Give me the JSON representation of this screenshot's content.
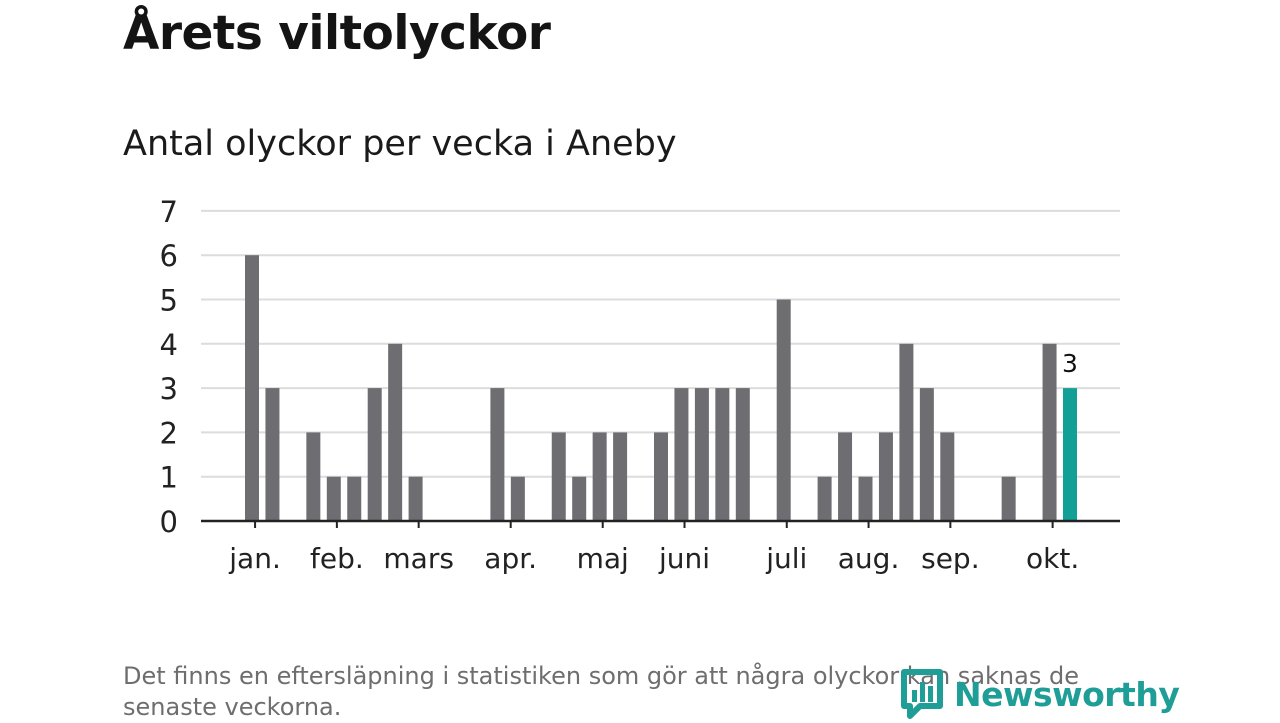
{
  "title": "Årets viltolyckor",
  "subtitle": "Antal olyckor per vecka i Aneby",
  "footnote": "Det finns en eftersläpning i statistiken som gör att några olyckor kan saknas de senaste veckorna.",
  "brand": {
    "name": "Newsworthy",
    "color": "#1f9e97",
    "icon": "bar-chart-speech-bubble-icon"
  },
  "colors": {
    "bar": "#6e6d72",
    "highlight": "#12a096",
    "grid": "#dcdcdc",
    "axis": "#222222"
  },
  "chart_data": {
    "type": "bar",
    "ylim": [
      0,
      7
    ],
    "yticks": [
      0,
      1,
      2,
      3,
      4,
      5,
      6,
      7
    ],
    "grid": true,
    "values": [
      6,
      3,
      0,
      2,
      1,
      1,
      3,
      4,
      1,
      0,
      0,
      0,
      3,
      1,
      0,
      2,
      1,
      2,
      2,
      0,
      2,
      3,
      3,
      3,
      3,
      0,
      5,
      0,
      1,
      2,
      1,
      2,
      4,
      3,
      2,
      0,
      0,
      1,
      0,
      4,
      3
    ],
    "highlight_index": 40,
    "highlight_label": "3",
    "months": [
      {
        "label": "jan.",
        "week": 0.15
      },
      {
        "label": "feb.",
        "week": 4.15
      },
      {
        "label": "mars",
        "week": 8.15
      },
      {
        "label": "apr.",
        "week": 12.65
      },
      {
        "label": "maj",
        "week": 17.15
      },
      {
        "label": "juni",
        "week": 21.15
      },
      {
        "label": "juli",
        "week": 26.15
      },
      {
        "label": "aug.",
        "week": 30.15
      },
      {
        "label": "sep.",
        "week": 34.15
      },
      {
        "label": "okt.",
        "week": 39.15
      }
    ]
  }
}
